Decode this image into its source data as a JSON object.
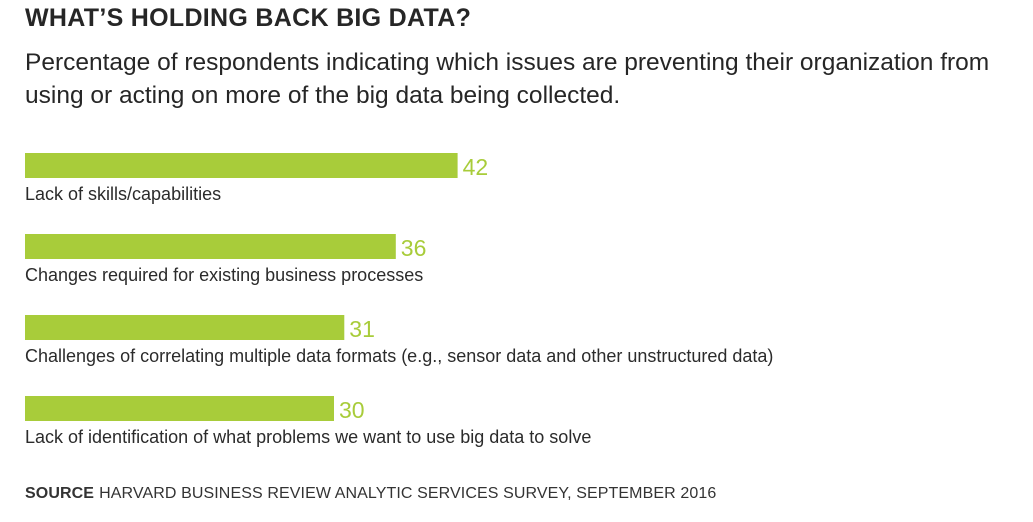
{
  "title": "WHAT’S HOLDING BACK BIG DATA?",
  "subtitle": "Percentage of respondents indicating which issues are preventing their organization from using or acting on more of the big data being collected.",
  "source": {
    "label": "SOURCE",
    "text": "HARVARD BUSINESS REVIEW ANALYTIC SERVICES SURVEY, SEPTEMBER 2016"
  },
  "colors": {
    "bar": "#a8cc3a",
    "value_label": "#a8cc3a",
    "text": "#2b2b2b"
  },
  "chart_data": {
    "type": "bar",
    "orientation": "horizontal",
    "categories": [
      "Lack of skills/capabilities",
      "Changes required for existing business processes",
      "Challenges of correlating multiple data formats (e.g., sensor data and other unstructured data)",
      "Lack of identification of what problems we want to use big data to solve"
    ],
    "values": [
      42,
      36,
      31,
      30
    ],
    "title": "",
    "xlabel": "",
    "ylabel": "",
    "grid": false,
    "legend": "none"
  }
}
